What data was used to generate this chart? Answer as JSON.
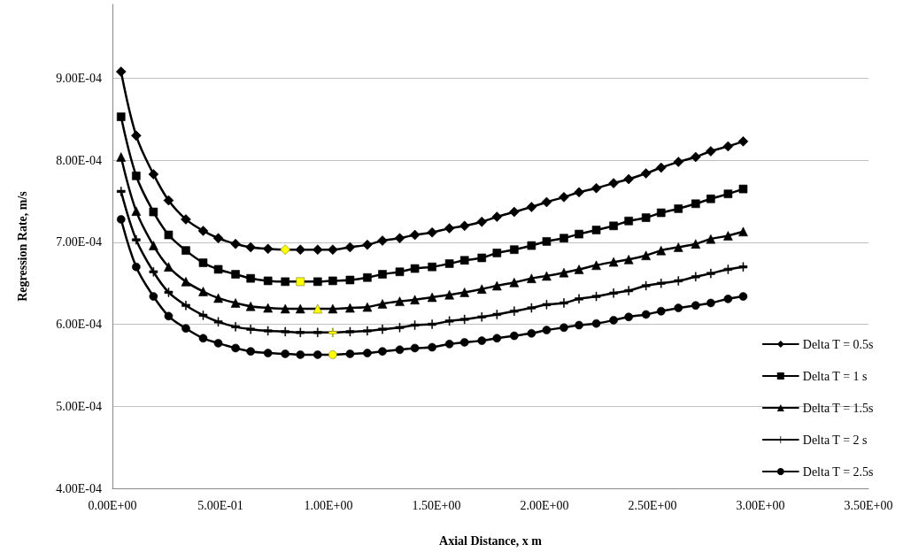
{
  "chart_data": {
    "type": "line",
    "xlabel": "Axial Distance, x m",
    "ylabel": "Regression Rate, m/s",
    "x": [
      0.04,
      0.11,
      0.19,
      0.26,
      0.34,
      0.42,
      0.49,
      0.57,
      0.64,
      0.72,
      0.8,
      0.87,
      0.95,
      1.02,
      1.1,
      1.18,
      1.25,
      1.33,
      1.4,
      1.48,
      1.56,
      1.63,
      1.71,
      1.78,
      1.86,
      1.94,
      2.01,
      2.09,
      2.16,
      2.24,
      2.32,
      2.39,
      2.47,
      2.54,
      2.62,
      2.7,
      2.77,
      2.85,
      2.92
    ],
    "xlim": [
      0,
      3.5
    ],
    "xticks": [
      {
        "value": 0,
        "label": "0.00E+00"
      },
      {
        "value": 0.5,
        "label": "5.00E-01"
      },
      {
        "value": 1,
        "label": "1.00E+00"
      },
      {
        "value": 1.5,
        "label": "1.50E+00"
      },
      {
        "value": 2,
        "label": "2.00E+00"
      },
      {
        "value": 2.5,
        "label": "2.50E+00"
      },
      {
        "value": 3,
        "label": "3.00E+00"
      },
      {
        "value": 3.5,
        "label": "3.50E+00"
      }
    ],
    "ylim": [
      0.0004,
      0.00099
    ],
    "yticks": [
      {
        "value": 0.0004,
        "label": "4.00E-04"
      },
      {
        "value": 0.0005,
        "label": "5.00E-04"
      },
      {
        "value": 0.0006,
        "label": "6.00E-04"
      },
      {
        "value": 0.0007,
        "label": "7.00E-04"
      },
      {
        "value": 0.0008,
        "label": "8.00E-04"
      },
      {
        "value": 0.0009,
        "label": "9.00E-04"
      }
    ],
    "grid": "y",
    "legend": "bottom right",
    "line_style": "solid",
    "series": [
      {
        "name": "Delta T = 0.5s",
        "color": "#000000",
        "marker": "diamond",
        "values": [
          0.000908,
          0.00083,
          0.000783,
          0.000751,
          0.000728,
          0.000714,
          0.000705,
          0.000698,
          0.000694,
          0.000692,
          0.000691,
          0.000691,
          0.000691,
          0.000691,
          0.000694,
          0.000697,
          0.000702,
          0.000705,
          0.000709,
          0.000712,
          0.000717,
          0.00072,
          0.000725,
          0.000731,
          0.000737,
          0.000743,
          0.000749,
          0.000755,
          0.000761,
          0.000766,
          0.000772,
          0.000777,
          0.000784,
          0.000791,
          0.000798,
          0.000804,
          0.000811,
          0.000817,
          0.000823
        ],
        "colors": [
          "#000000",
          "#000000",
          "#000000",
          "#000000",
          "#000000",
          "#000000",
          "#000000",
          "#000000",
          "#000000",
          "#000000",
          "#ffff00",
          "#000000",
          "#000000",
          "#000000",
          "#000000",
          "#000000",
          "#000000",
          "#000000",
          "#000000",
          "#000000",
          "#000000",
          "#000000",
          "#000000",
          "#000000",
          "#000000",
          "#000000",
          "#000000",
          "#000000",
          "#000000",
          "#000000",
          "#000000",
          "#000000",
          "#000000",
          "#000000",
          "#000000",
          "#000000",
          "#000000",
          "#000000",
          "#000000"
        ]
      },
      {
        "name": "Delta T = 1 s",
        "color": "#000000",
        "marker": "square",
        "values": [
          0.000853,
          0.000781,
          0.000737,
          0.000709,
          0.00069,
          0.000675,
          0.000667,
          0.000661,
          0.000656,
          0.000653,
          0.000652,
          0.000652,
          0.000652,
          0.000653,
          0.000654,
          0.000657,
          0.000661,
          0.000664,
          0.000668,
          0.00067,
          0.000674,
          0.000678,
          0.000681,
          0.000687,
          0.000691,
          0.000696,
          0.000701,
          0.000705,
          0.00071,
          0.000715,
          0.00072,
          0.000726,
          0.00073,
          0.000736,
          0.000741,
          0.000747,
          0.000753,
          0.000759,
          0.000765
        ],
        "colors": [
          "#000000",
          "#000000",
          "#000000",
          "#000000",
          "#000000",
          "#000000",
          "#000000",
          "#000000",
          "#000000",
          "#000000",
          "#000000",
          "#ffff00",
          "#000000",
          "#000000",
          "#000000",
          "#000000",
          "#000000",
          "#000000",
          "#000000",
          "#000000",
          "#000000",
          "#000000",
          "#000000",
          "#000000",
          "#000000",
          "#000000",
          "#000000",
          "#000000",
          "#000000",
          "#000000",
          "#000000",
          "#000000",
          "#000000",
          "#000000",
          "#000000",
          "#000000",
          "#000000",
          "#000000",
          "#000000"
        ]
      },
      {
        "name": "Delta T = 1.5s",
        "color": "#000000",
        "marker": "triangle",
        "values": [
          0.000804,
          0.000738,
          0.000696,
          0.00067,
          0.000652,
          0.00064,
          0.000632,
          0.000626,
          0.000622,
          0.00062,
          0.000619,
          0.000619,
          0.000619,
          0.000619,
          0.00062,
          0.000621,
          0.000625,
          0.000628,
          0.00063,
          0.000633,
          0.000636,
          0.000639,
          0.000643,
          0.000647,
          0.000651,
          0.000656,
          0.000659,
          0.000663,
          0.000667,
          0.000672,
          0.000676,
          0.000679,
          0.000684,
          0.00069,
          0.000694,
          0.000698,
          0.000704,
          0.000708,
          0.000713
        ],
        "colors": [
          "#000000",
          "#000000",
          "#000000",
          "#000000",
          "#000000",
          "#000000",
          "#000000",
          "#000000",
          "#000000",
          "#000000",
          "#000000",
          "#000000",
          "#ffff00",
          "#000000",
          "#000000",
          "#000000",
          "#000000",
          "#000000",
          "#000000",
          "#000000",
          "#000000",
          "#000000",
          "#000000",
          "#000000",
          "#000000",
          "#000000",
          "#000000",
          "#000000",
          "#000000",
          "#000000",
          "#000000",
          "#000000",
          "#000000",
          "#000000",
          "#000000",
          "#000000",
          "#000000",
          "#000000",
          "#000000"
        ]
      },
      {
        "name": "Delta T = 2 s",
        "color": "#000000",
        "marker": "cross",
        "values": [
          0.000762,
          0.000703,
          0.000664,
          0.000639,
          0.000623,
          0.000611,
          0.000603,
          0.000597,
          0.000594,
          0.000592,
          0.000591,
          0.00059,
          0.00059,
          0.00059,
          0.000591,
          0.000592,
          0.000594,
          0.000596,
          0.000599,
          0.0006,
          0.000604,
          0.000606,
          0.000609,
          0.000612,
          0.000616,
          0.00062,
          0.000624,
          0.000626,
          0.000631,
          0.000634,
          0.000638,
          0.000641,
          0.000647,
          0.00065,
          0.000653,
          0.000658,
          0.000662,
          0.000667,
          0.00067
        ],
        "colors": [
          "#000000",
          "#000000",
          "#000000",
          "#000000",
          "#000000",
          "#000000",
          "#000000",
          "#000000",
          "#000000",
          "#000000",
          "#000000",
          "#000000",
          "#000000",
          "#ffff00",
          "#000000",
          "#000000",
          "#000000",
          "#000000",
          "#000000",
          "#000000",
          "#000000",
          "#000000",
          "#000000",
          "#000000",
          "#000000",
          "#000000",
          "#000000",
          "#000000",
          "#000000",
          "#000000",
          "#000000",
          "#000000",
          "#000000",
          "#000000",
          "#000000",
          "#000000",
          "#000000",
          "#000000",
          "#000000"
        ]
      },
      {
        "name": "Delta T = 2.5s",
        "color": "#000000",
        "marker": "circle",
        "values": [
          0.000728,
          0.00067,
          0.000634,
          0.00061,
          0.000595,
          0.000583,
          0.000577,
          0.000571,
          0.000567,
          0.000565,
          0.000564,
          0.000563,
          0.000563,
          0.000563,
          0.000564,
          0.000565,
          0.000567,
          0.000569,
          0.000571,
          0.000572,
          0.000576,
          0.000578,
          0.00058,
          0.000583,
          0.000586,
          0.000589,
          0.000593,
          0.000596,
          0.000599,
          0.000601,
          0.000605,
          0.000609,
          0.000612,
          0.000616,
          0.00062,
          0.000623,
          0.000626,
          0.000631,
          0.000634
        ],
        "colors": [
          "#000000",
          "#000000",
          "#000000",
          "#000000",
          "#000000",
          "#000000",
          "#000000",
          "#000000",
          "#000000",
          "#000000",
          "#000000",
          "#000000",
          "#000000",
          "#ffff00",
          "#000000",
          "#000000",
          "#000000",
          "#000000",
          "#000000",
          "#000000",
          "#000000",
          "#000000",
          "#000000",
          "#000000",
          "#000000",
          "#000000",
          "#000000",
          "#000000",
          "#000000",
          "#000000",
          "#000000",
          "#000000",
          "#000000",
          "#000000",
          "#000000",
          "#000000",
          "#000000",
          "#000000",
          "#000000"
        ]
      }
    ]
  }
}
